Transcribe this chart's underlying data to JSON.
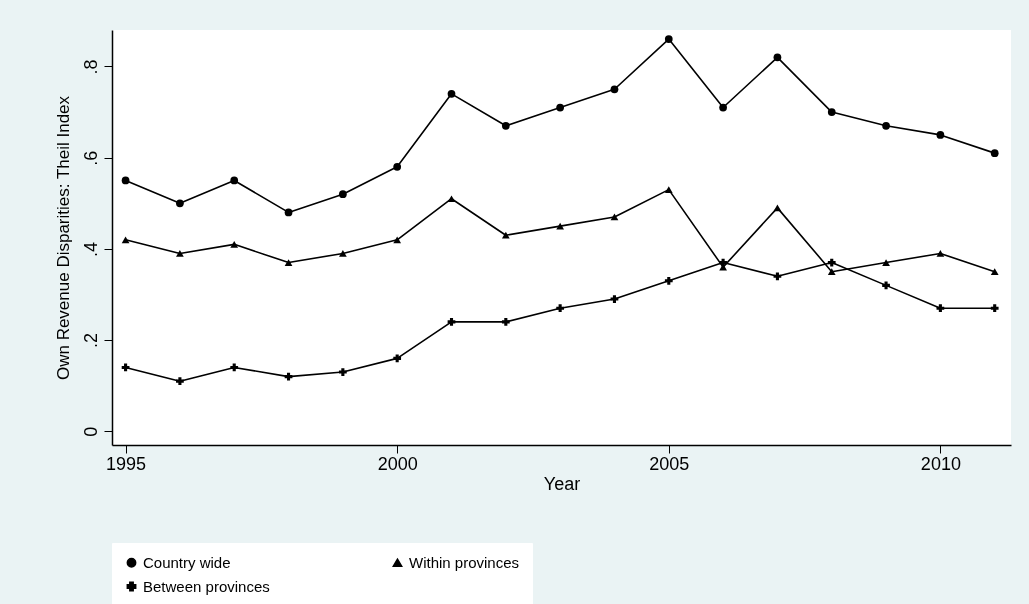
{
  "chart_data": {
    "type": "line",
    "xlabel": "Year",
    "ylabel": "Own Revenue Disparities: Theil Index",
    "x": [
      1995,
      1996,
      1997,
      1998,
      1999,
      2000,
      2001,
      2002,
      2003,
      2004,
      2005,
      2006,
      2007,
      2008,
      2009,
      2010,
      2011
    ],
    "series": [
      {
        "name": "Country wide",
        "color": "#000000",
        "marker": "circle",
        "values": [
          0.55,
          0.5,
          0.55,
          0.48,
          0.52,
          0.58,
          0.74,
          0.67,
          0.71,
          0.75,
          0.86,
          0.71,
          0.82,
          0.7,
          0.67,
          0.65,
          0.61
        ]
      },
      {
        "name": "Within provinces",
        "color": "#000000",
        "marker": "triangle",
        "values": [
          0.42,
          0.39,
          0.41,
          0.37,
          0.39,
          0.42,
          0.51,
          0.43,
          0.45,
          0.47,
          0.53,
          0.36,
          0.49,
          0.35,
          0.37,
          0.39,
          0.35
        ]
      },
      {
        "name": "Between provinces",
        "color": "#000000",
        "marker": "cross",
        "values": [
          0.14,
          0.11,
          0.14,
          0.12,
          0.13,
          0.16,
          0.24,
          0.24,
          0.27,
          0.29,
          0.33,
          0.37,
          0.34,
          0.37,
          0.32,
          0.27,
          0.27
        ]
      }
    ],
    "xlim": [
      1994.75,
      2011.3
    ],
    "xticks": [
      1995,
      2000,
      2005,
      2010
    ],
    "ylim": [
      -0.03,
      0.88
    ],
    "yticks": [
      0,
      {
        "value": 0.2,
        "label": ".2"
      },
      {
        "value": 0.4,
        "label": ".4"
      },
      {
        "value": 0.6,
        "label": ".6"
      },
      {
        "value": 0.8,
        "label": ".8"
      }
    ],
    "grid": false,
    "legend": "bottom",
    "line_style": "solid"
  }
}
